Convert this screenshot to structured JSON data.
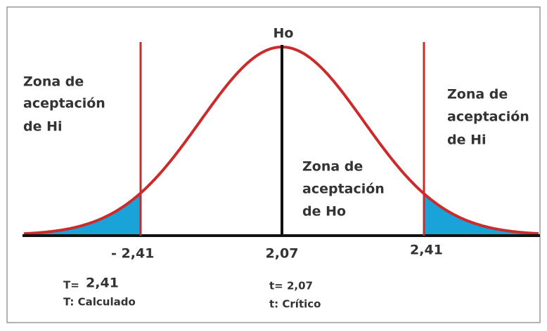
{
  "top_label": "Ho",
  "left_zone": [
    "Zona de",
    "aceptación",
    "de Hi"
  ],
  "right_zone": [
    "Zona de",
    "aceptación",
    "de Hi"
  ],
  "center_zone": [
    "Zona de",
    "aceptación",
    "de Ho"
  ],
  "axis_labels": [
    "- 2,41",
    "2,07",
    "2,41"
  ],
  "notes": {
    "t_calc_prefix": "T=",
    "t_calc_value": "2,41",
    "t_calc_desc": "T: Calculado",
    "t_crit": "t= 2,07",
    "t_crit_desc": "t: Crítico"
  }
}
